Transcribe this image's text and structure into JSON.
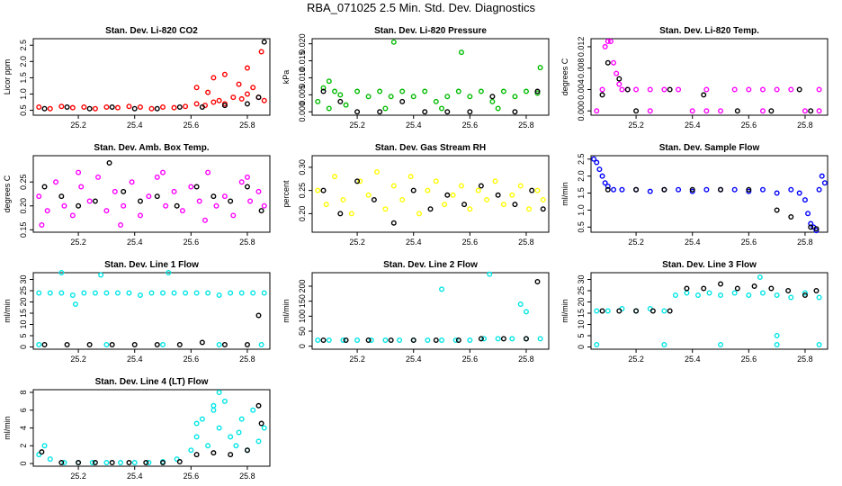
{
  "title": "RBA_071025  2.5 Min. Std. Dev. Diagnostics",
  "chart_data": [
    {
      "type": "scatter",
      "id": "co2",
      "title": "Stan. Dev. Li-820 CO2",
      "ylabel": "Licor ppm",
      "color": "#ff0000",
      "xlim": [
        25.04,
        25.88
      ],
      "ylim": [
        0.35,
        2.7
      ],
      "xticks": [
        "25.2",
        "25.4",
        "25.6",
        "25.8"
      ],
      "yticks": [
        "0.5",
        "1.0",
        "1.5",
        "2.0",
        "2.5"
      ],
      "x": [
        25.06,
        25.1,
        25.14,
        25.18,
        25.22,
        25.26,
        25.3,
        25.34,
        25.38,
        25.42,
        25.46,
        25.5,
        25.54,
        25.58,
        25.62,
        25.65,
        25.68,
        25.7,
        25.72,
        25.75,
        25.78,
        25.8,
        25.82,
        25.84,
        25.86,
        25.68,
        25.72,
        25.77,
        25.8,
        25.85,
        25.62,
        25.66
      ],
      "y": [
        0.6,
        0.55,
        0.62,
        0.58,
        0.6,
        0.55,
        0.6,
        0.58,
        0.62,
        0.6,
        0.55,
        0.6,
        0.58,
        0.62,
        0.7,
        0.65,
        0.75,
        0.8,
        0.7,
        0.9,
        0.85,
        1.0,
        1.2,
        0.9,
        0.8,
        1.5,
        1.6,
        1.3,
        1.8,
        2.3,
        1.2,
        1.05
      ],
      "x2": [
        25.08,
        25.16,
        25.24,
        25.32,
        25.4,
        25.48,
        25.56,
        25.64,
        25.72,
        25.8,
        25.84,
        25.86
      ],
      "y2": [
        0.55,
        0.6,
        0.55,
        0.6,
        0.55,
        0.55,
        0.6,
        0.6,
        0.65,
        0.7,
        0.9,
        2.6
      ]
    },
    {
      "type": "scatter",
      "id": "pressure",
      "title": "Stan. Dev. Li-820 Pressure",
      "ylabel": "kPa",
      "color": "#00bb00",
      "xlim": [
        25.04,
        25.88
      ],
      "ylim": [
        -0.001,
        0.0215
      ],
      "xticks": [
        "25.2",
        "25.4",
        "25.6",
        "25.8"
      ],
      "yticks": [
        "0.000",
        "0.005",
        "0.010",
        "0.015",
        "0.020"
      ],
      "x": [
        25.06,
        25.08,
        25.1,
        25.12,
        25.14,
        25.16,
        25.2,
        25.24,
        25.28,
        25.32,
        25.36,
        25.4,
        25.44,
        25.48,
        25.52,
        25.56,
        25.6,
        25.64,
        25.68,
        25.72,
        25.76,
        25.8,
        25.84,
        25.33,
        25.57,
        25.85,
        25.1,
        25.3,
        25.5,
        25.7
      ],
      "y": [
        0.003,
        0.007,
        0.009,
        0.006,
        0.005,
        0.002,
        0.006,
        0.0045,
        0.006,
        0.0045,
        0.006,
        0.0045,
        0.006,
        0.003,
        0.0045,
        0.006,
        0.0045,
        0.006,
        0.003,
        0.006,
        0.0045,
        0.006,
        0.0055,
        0.0205,
        0.0175,
        0.013,
        0.001,
        0.001,
        0.001,
        0.001
      ],
      "x2": [
        25.08,
        25.14,
        25.2,
        25.28,
        25.36,
        25.44,
        25.52,
        25.6,
        25.68,
        25.76,
        25.84
      ],
      "y2": [
        0.006,
        0.003,
        0.0,
        0.0,
        0.003,
        0.0,
        0.0,
        0.0,
        0.0045,
        0.0,
        0.006
      ]
    },
    {
      "type": "scatter",
      "id": "temp",
      "title": "Stan. Dev. Li-820 Temp.",
      "ylabel": "degrees C",
      "color": "#ff00ff",
      "xlim": [
        25.04,
        25.88
      ],
      "ylim": [
        -0.0008,
        0.0135
      ],
      "xticks": [
        "25.2",
        "25.4",
        "25.6",
        "25.8"
      ],
      "yticks": [
        "0.000",
        "0.004",
        "0.008",
        "0.012"
      ],
      "x": [
        25.06,
        25.08,
        25.09,
        25.1,
        25.11,
        25.12,
        25.13,
        25.14,
        25.15,
        25.17,
        25.2,
        25.25,
        25.3,
        25.35,
        25.4,
        25.45,
        25.5,
        25.55,
        25.6,
        25.65,
        25.7,
        25.75,
        25.8,
        25.85,
        25.25,
        25.45,
        25.65,
        25.85
      ],
      "y": [
        0.0,
        0.004,
        0.012,
        0.013,
        0.013,
        0.009,
        0.007,
        0.005,
        0.004,
        0.004,
        0.004,
        0.004,
        0.004,
        0.004,
        0.0,
        0.004,
        0.0,
        0.004,
        0.004,
        0.004,
        0.004,
        0.004,
        0.0,
        0.004,
        0.0,
        0.0,
        0.0,
        0.0
      ],
      "x2": [
        25.08,
        25.1,
        25.14,
        25.17,
        25.2,
        25.32,
        25.44,
        25.56,
        25.68,
        25.78,
        25.82
      ],
      "y2": [
        0.003,
        0.009,
        0.006,
        0.004,
        0.0,
        0.004,
        0.003,
        0.0,
        0.0,
        0.004,
        0.0
      ]
    },
    {
      "type": "scatter",
      "id": "boxtemp",
      "title": "Stan. Dev. Amb. Box Temp.",
      "ylabel": "degrees C",
      "color": "#ff00ff",
      "xlim": [
        25.04,
        25.88
      ],
      "ylim": [
        0.145,
        0.305
      ],
      "xticks": [
        "25.2",
        "25.4",
        "25.6",
        "25.8"
      ],
      "yticks": [
        "0.15",
        "0.20",
        "0.25"
      ],
      "x": [
        25.06,
        25.09,
        25.12,
        25.15,
        25.18,
        25.21,
        25.24,
        25.27,
        25.3,
        25.33,
        25.36,
        25.39,
        25.42,
        25.45,
        25.48,
        25.51,
        25.54,
        25.57,
        25.6,
        25.63,
        25.66,
        25.69,
        25.72,
        25.75,
        25.78,
        25.81,
        25.84,
        25.86,
        25.07,
        25.2,
        25.35,
        25.5,
        25.65,
        25.8
      ],
      "y": [
        0.22,
        0.19,
        0.25,
        0.2,
        0.18,
        0.24,
        0.21,
        0.26,
        0.19,
        0.23,
        0.2,
        0.25,
        0.18,
        0.22,
        0.26,
        0.2,
        0.23,
        0.19,
        0.24,
        0.21,
        0.27,
        0.2,
        0.22,
        0.18,
        0.25,
        0.21,
        0.23,
        0.2,
        0.16,
        0.27,
        0.16,
        0.27,
        0.17,
        0.26
      ],
      "x2": [
        25.08,
        25.14,
        25.2,
        25.26,
        25.31,
        25.36,
        25.42,
        25.48,
        25.55,
        25.62,
        25.68,
        25.74,
        25.8,
        25.85
      ],
      "y2": [
        0.24,
        0.22,
        0.2,
        0.21,
        0.29,
        0.23,
        0.21,
        0.22,
        0.2,
        0.24,
        0.22,
        0.21,
        0.24,
        0.19
      ]
    },
    {
      "type": "scatter",
      "id": "rh",
      "title": "Stan. Dev. Gas Stream RH",
      "ylabel": "percent",
      "color": "#ffff00",
      "xlim": [
        25.04,
        25.88
      ],
      "ylim": [
        0.16,
        0.325
      ],
      "xticks": [
        "25.2",
        "25.4",
        "25.6",
        "25.8"
      ],
      "yticks": [
        "0.20",
        "0.25",
        "0.30"
      ],
      "x": [
        25.06,
        25.09,
        25.12,
        25.15,
        25.18,
        25.21,
        25.24,
        25.27,
        25.3,
        25.33,
        25.36,
        25.39,
        25.42,
        25.45,
        25.48,
        25.51,
        25.54,
        25.57,
        25.6,
        25.63,
        25.66,
        25.69,
        25.72,
        25.75,
        25.78,
        25.81,
        25.84,
        25.86
      ],
      "y": [
        0.25,
        0.22,
        0.28,
        0.23,
        0.2,
        0.27,
        0.24,
        0.29,
        0.21,
        0.26,
        0.23,
        0.28,
        0.2,
        0.25,
        0.27,
        0.22,
        0.24,
        0.26,
        0.21,
        0.25,
        0.23,
        0.27,
        0.22,
        0.24,
        0.26,
        0.21,
        0.25,
        0.23
      ],
      "x2": [
        25.08,
        25.14,
        25.2,
        25.26,
        25.33,
        25.4,
        25.46,
        25.52,
        25.58,
        25.64,
        25.7,
        25.76,
        25.82,
        25.86
      ],
      "y2": [
        0.25,
        0.2,
        0.27,
        0.23,
        0.18,
        0.25,
        0.21,
        0.24,
        0.22,
        0.26,
        0.24,
        0.22,
        0.25,
        0.21
      ]
    },
    {
      "type": "scatter",
      "id": "sampleflow",
      "title": "Stan. Dev. Sample Flow",
      "ylabel": "ml/min",
      "color": "#0000ff",
      "xlim": [
        25.04,
        25.88
      ],
      "ylim": [
        0.35,
        2.6
      ],
      "xticks": [
        "25.2",
        "25.4",
        "25.6",
        "25.8"
      ],
      "yticks": [
        "0.5",
        "1.0",
        "1.5",
        "2.0",
        "2.5"
      ],
      "x": [
        25.05,
        25.06,
        25.07,
        25.08,
        25.09,
        25.1,
        25.12,
        25.15,
        25.2,
        25.25,
        25.3,
        25.35,
        25.4,
        25.45,
        25.5,
        25.55,
        25.6,
        25.65,
        25.7,
        25.75,
        25.78,
        25.8,
        25.81,
        25.82,
        25.83,
        25.84,
        25.85,
        25.86,
        25.87
      ],
      "y": [
        2.5,
        2.4,
        2.2,
        2.0,
        1.8,
        1.7,
        1.6,
        1.6,
        1.6,
        1.55,
        1.6,
        1.6,
        1.55,
        1.6,
        1.6,
        1.6,
        1.55,
        1.6,
        1.5,
        1.6,
        1.5,
        1.3,
        0.9,
        0.6,
        0.5,
        0.4,
        1.6,
        2.0,
        1.8
      ],
      "x2": [
        25.1,
        25.2,
        25.3,
        25.4,
        25.5,
        25.6,
        25.7,
        25.75,
        25.82,
        25.84
      ],
      "y2": [
        1.6,
        1.6,
        1.6,
        1.6,
        1.6,
        1.6,
        1.0,
        0.8,
        0.5,
        0.45
      ]
    },
    {
      "type": "scatter",
      "id": "line1",
      "title": "Stan. Dev. Line 1 Flow",
      "ylabel": "ml/min",
      "color": "#00e5e5",
      "xlim": [
        25.04,
        25.88
      ],
      "ylim": [
        -1,
        33
      ],
      "xticks": [
        "25.2",
        "25.4",
        "25.6",
        "25.8"
      ],
      "yticks": [
        "0",
        "5",
        "10",
        "15",
        "20",
        "25",
        "30"
      ],
      "x": [
        25.06,
        25.1,
        25.14,
        25.18,
        25.22,
        25.26,
        25.3,
        25.34,
        25.38,
        25.42,
        25.46,
        25.5,
        25.54,
        25.58,
        25.62,
        25.66,
        25.7,
        25.74,
        25.78,
        25.82,
        25.86,
        25.14,
        25.19,
        25.28,
        25.52,
        25.06,
        25.3,
        25.5,
        25.7,
        25.85
      ],
      "y": [
        24,
        24,
        24,
        23,
        24,
        24,
        24,
        24,
        24,
        23,
        24,
        24,
        24,
        24,
        24,
        24,
        23,
        24,
        24,
        24,
        24,
        33,
        19,
        32,
        33,
        1,
        1,
        1,
        1,
        1
      ],
      "x2": [
        25.08,
        25.16,
        25.24,
        25.32,
        25.4,
        25.48,
        25.56,
        25.64,
        25.72,
        25.8,
        25.84
      ],
      "y2": [
        1,
        1,
        1,
        1,
        1,
        1,
        1,
        2,
        1,
        1,
        14
      ]
    },
    {
      "type": "scatter",
      "id": "line2",
      "title": "Stan. Dev. Line 2 Flow",
      "ylabel": "ml/min",
      "color": "#00e5e5",
      "xlim": [
        25.04,
        25.88
      ],
      "ylim": [
        -10,
        245
      ],
      "xticks": [
        "25.2",
        "25.4",
        "25.6",
        "25.8"
      ],
      "yticks": [
        "0",
        "50",
        "100",
        "150",
        "200"
      ],
      "x": [
        25.06,
        25.1,
        25.15,
        25.2,
        25.25,
        25.3,
        25.35,
        25.4,
        25.45,
        25.5,
        25.55,
        25.6,
        25.65,
        25.7,
        25.75,
        25.8,
        25.85,
        25.5,
        25.67,
        25.78,
        25.8
      ],
      "y": [
        20,
        20,
        20,
        20,
        20,
        20,
        20,
        20,
        20,
        20,
        20,
        20,
        25,
        25,
        25,
        25,
        25,
        190,
        240,
        140,
        115
      ],
      "x2": [
        25.08,
        25.16,
        25.24,
        25.32,
        25.4,
        25.48,
        25.56,
        25.64,
        25.72,
        25.8,
        25.84
      ],
      "y2": [
        20,
        20,
        20,
        20,
        20,
        20,
        20,
        25,
        25,
        25,
        215
      ]
    },
    {
      "type": "scatter",
      "id": "line3",
      "title": "Stan. Dev. Line 3 Flow",
      "ylabel": "ml/min",
      "color": "#00e5e5",
      "xlim": [
        25.04,
        25.88
      ],
      "ylim": [
        -1,
        33
      ],
      "xticks": [
        "25.2",
        "25.4",
        "25.6",
        "25.8"
      ],
      "yticks": [
        "0",
        "5",
        "10",
        "15",
        "20",
        "25",
        "30"
      ],
      "x": [
        25.06,
        25.1,
        25.15,
        25.2,
        25.25,
        25.3,
        25.34,
        25.38,
        25.42,
        25.46,
        25.5,
        25.55,
        25.6,
        25.65,
        25.7,
        25.75,
        25.8,
        25.85,
        25.06,
        25.3,
        25.5,
        25.7,
        25.85,
        25.64,
        25.7
      ],
      "y": [
        16,
        16,
        17,
        16,
        17,
        16,
        23,
        24,
        23,
        24,
        23,
        24,
        23,
        24,
        23,
        22,
        24,
        22,
        1,
        1,
        1,
        1,
        1,
        31,
        5
      ],
      "x2": [
        25.08,
        25.14,
        25.2,
        25.26,
        25.32,
        25.38,
        25.44,
        25.5,
        25.56,
        25.62,
        25.68,
        25.74,
        25.8,
        25.84
      ],
      "y2": [
        16,
        16,
        16,
        16,
        16,
        26,
        26,
        28,
        26,
        27,
        26,
        25,
        23,
        25
      ]
    },
    {
      "type": "scatter",
      "id": "line4",
      "title": "Stan. Dev. Line 4 (LT) Flow",
      "ylabel": "ml/min",
      "color": "#00e5e5",
      "xlim": [
        25.04,
        25.88
      ],
      "ylim": [
        -0.3,
        8.3
      ],
      "xticks": [
        "25.2",
        "25.4",
        "25.6",
        "25.8"
      ],
      "yticks": [
        "0",
        "2",
        "4",
        "6",
        "8"
      ],
      "x": [
        25.06,
        25.08,
        25.1,
        25.15,
        25.2,
        25.25,
        25.3,
        25.35,
        25.4,
        25.45,
        25.5,
        25.55,
        25.6,
        25.62,
        25.64,
        25.66,
        25.68,
        25.7,
        25.72,
        25.74,
        25.76,
        25.78,
        25.8,
        25.82,
        25.84,
        25.86,
        25.7,
        25.68,
        25.77,
        25.62
      ],
      "y": [
        1,
        2,
        0.5,
        0.1,
        0.1,
        0.1,
        0.1,
        0.1,
        0.1,
        0.1,
        0.2,
        0.5,
        1.5,
        3,
        5,
        2,
        6,
        4,
        7,
        3,
        2,
        5,
        1.5,
        6,
        2.5,
        4,
        8,
        6.5,
        3.5,
        4.5
      ],
      "x2": [
        25.07,
        25.14,
        25.2,
        25.26,
        25.32,
        25.38,
        25.44,
        25.5,
        25.56,
        25.62,
        25.68,
        25.74,
        25.8,
        25.84,
        25.85
      ],
      "y2": [
        1.3,
        0.1,
        0.1,
        0.1,
        0.1,
        0.1,
        0.1,
        0.1,
        0.2,
        1.0,
        1.2,
        1.0,
        1.5,
        6.5,
        4.5
      ]
    }
  ]
}
